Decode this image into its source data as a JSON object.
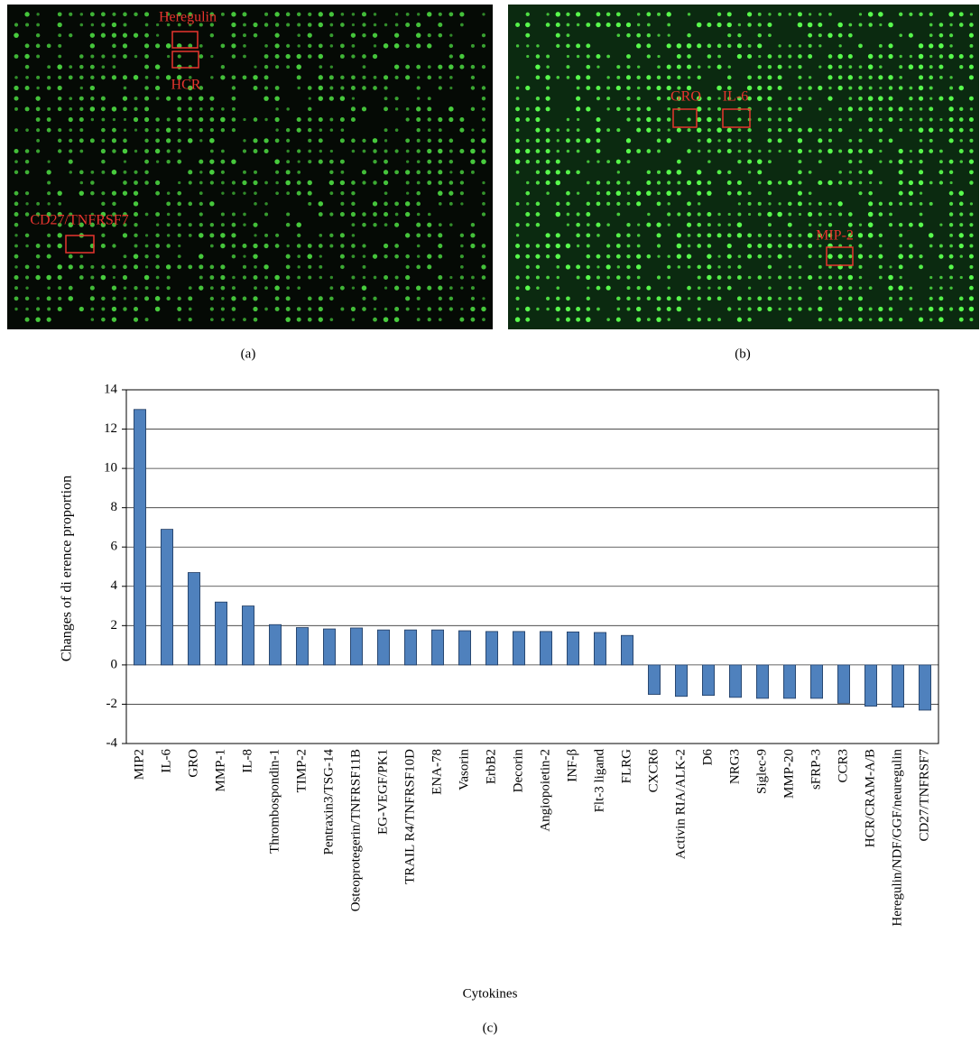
{
  "panels": [
    {
      "caption": "(a)",
      "annotations": [
        "Heregulin",
        "HCR",
        "CD27/TNFRSF7"
      ]
    },
    {
      "caption": "(b)",
      "annotations": [
        "GRO",
        "IL-6",
        "MIP-2"
      ]
    },
    {
      "caption": "(c)"
    }
  ],
  "chart_data": {
    "type": "bar",
    "y_label": "Changes of di erence proportion",
    "x_label": "Cytokines",
    "categories": [
      "MIP2",
      "IL-6",
      "GRO",
      "MMP-1",
      "IL-8",
      "Thrombospondin-1",
      "TIMP-2",
      "Pentraxin3/TSG-14",
      "Osteoprotegerin/TNFRSF11B",
      "EG-VEGF/PK1",
      "TRAIL R4/TNFRSF10D",
      "ENA-78",
      "Vasorin",
      "ErbB2",
      "Decorin",
      "Angiopoietin-2",
      "INF-β",
      "Flt-3 ligand",
      "FLRG",
      "CXCR6",
      "Activin RIA/ALK-2",
      "D6",
      "NRG3",
      "Siglec-9",
      "MMP-20",
      "sFRP-3",
      "CCR3",
      "HCR/CRAM-A/B",
      "Heregulin/NDF/GGF/neuregulin",
      "CD27/TNFRSF7"
    ],
    "values": [
      13.0,
      6.9,
      4.7,
      3.2,
      3.0,
      2.05,
      1.9,
      1.83,
      1.88,
      1.78,
      1.78,
      1.78,
      1.74,
      1.7,
      1.7,
      1.7,
      1.68,
      1.65,
      1.5,
      -1.5,
      -1.6,
      -1.55,
      -1.65,
      -1.7,
      -1.7,
      -1.7,
      -1.95,
      -2.1,
      -2.15,
      -2.3
    ],
    "color": "#4f81bd",
    "ylim": [
      -4,
      14
    ],
    "yticks": [
      -4,
      -2,
      0,
      2,
      4,
      6,
      8,
      10,
      12,
      14
    ],
    "grid": true
  }
}
